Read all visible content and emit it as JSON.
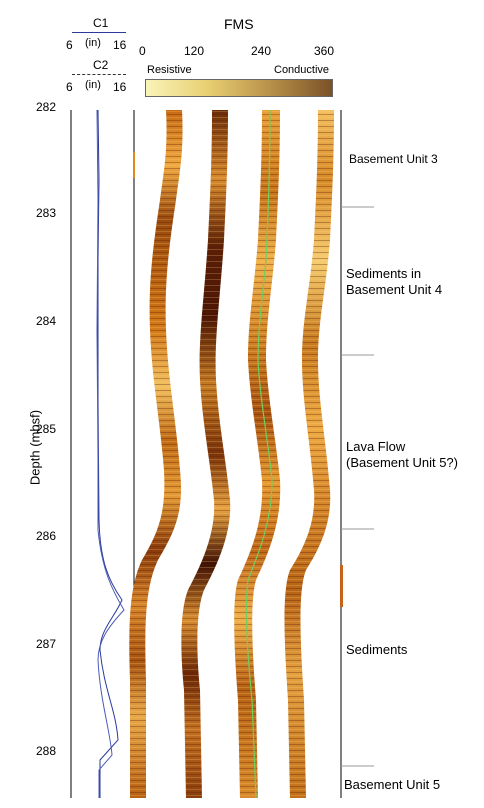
{
  "caliper": {
    "c1": {
      "name": "C1",
      "min": "6",
      "unit": "(in)",
      "max": "16"
    },
    "c2": {
      "name": "C2",
      "min": "6",
      "unit": "(in)",
      "max": "16"
    }
  },
  "fms": {
    "title": "FMS",
    "ticks": [
      "0",
      "120",
      "240",
      "360"
    ],
    "scale_left": "Resistive",
    "scale_right": "Conductive",
    "colors": {
      "low": "#f8f2b0",
      "high": "#7a5228"
    }
  },
  "depth": {
    "label": "Depth (mbsf)",
    "ticks": [
      "282",
      "283",
      "284",
      "285",
      "286",
      "287",
      "288"
    ]
  },
  "units": [
    {
      "label": "Basement Unit 3",
      "boundary_below": 283.0
    },
    {
      "label": "Sediments in\nBasement Unit 4",
      "boundary_below": 284.35
    },
    {
      "label": "Lava Flow\n(Basement Unit 5?)",
      "boundary_below": 285.95
    },
    {
      "label": "Sediments",
      "boundary_below": 288.15
    },
    {
      "label": "Basement Unit 5",
      "boundary_below": null
    }
  ],
  "colors": {
    "caliper_line": "#2a3a9a",
    "azimuth_line": "#6fcf5f",
    "image_dark": "#4a1a06",
    "image_mid": "#b8620e",
    "image_light": "#f2b24a"
  }
}
